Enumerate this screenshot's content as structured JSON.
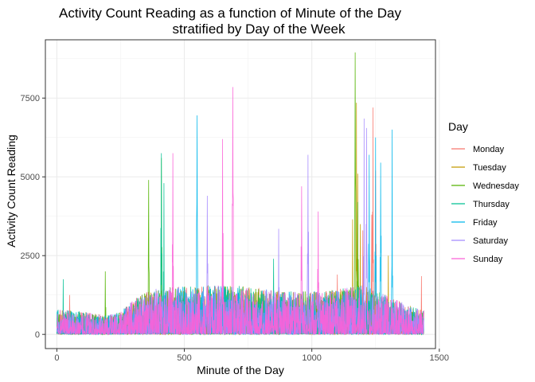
{
  "chart_data": {
    "type": "line",
    "title_line1": "Activity Count Reading as a function of Minute of the Day",
    "title_line2": "stratified by Day of the Week",
    "xlabel": "Minute of the Day",
    "ylabel": "Activity Count Reading",
    "xlim": [
      -45,
      1485
    ],
    "ylim": [
      -450,
      9350
    ],
    "x_ticks": [
      0,
      500,
      1000,
      1500
    ],
    "x_tick_labels": [
      "0",
      "500",
      "1000",
      "1500"
    ],
    "y_ticks": [
      0,
      2500,
      5000,
      7500
    ],
    "y_tick_labels": [
      "0",
      "2500",
      "5000",
      "7500"
    ],
    "grid": true,
    "legend_title": "Day",
    "legend_position": "right",
    "series": [
      {
        "name": "Monday",
        "color": "#F8766D",
        "peaks": [
          [
            1240,
            7200
          ],
          [
            1250,
            5200
          ],
          [
            1235,
            3800
          ],
          [
            1430,
            1850
          ],
          [
            1200,
            3300
          ],
          [
            1100,
            1900
          ],
          [
            50,
            1250
          ]
        ]
      },
      {
        "name": "Tuesday",
        "color": "#C49A00",
        "peaks": [
          [
            1175,
            7350
          ],
          [
            1160,
            3650
          ],
          [
            1180,
            5100
          ],
          [
            1190,
            3500
          ],
          [
            1300,
            2500
          ]
        ]
      },
      {
        "name": "Wednesday",
        "color": "#53B400",
        "peaks": [
          [
            1170,
            8950
          ],
          [
            360,
            4900
          ],
          [
            190,
            2000
          ],
          [
            410,
            5600
          ],
          [
            1180,
            4200
          ]
        ]
      },
      {
        "name": "Thursday",
        "color": "#00C094",
        "peaks": [
          [
            410,
            5750
          ],
          [
            420,
            4800
          ],
          [
            25,
            1750
          ],
          [
            850,
            2400
          ]
        ]
      },
      {
        "name": "Friday",
        "color": "#00B6EB",
        "peaks": [
          [
            550,
            6950
          ],
          [
            1315,
            6500
          ],
          [
            1250,
            6250
          ],
          [
            1225,
            5700
          ],
          [
            1270,
            5450
          ]
        ]
      },
      {
        "name": "Saturday",
        "color": "#A58AFF",
        "peaks": [
          [
            1205,
            6850
          ],
          [
            985,
            5700
          ],
          [
            590,
            4400
          ],
          [
            1215,
            6550
          ],
          [
            870,
            3350
          ]
        ]
      },
      {
        "name": "Sunday",
        "color": "#FB61D7",
        "peaks": [
          [
            690,
            7850
          ],
          [
            455,
            5750
          ],
          [
            650,
            6200
          ],
          [
            960,
            4700
          ],
          [
            1025,
            3900
          ]
        ]
      }
    ]
  }
}
